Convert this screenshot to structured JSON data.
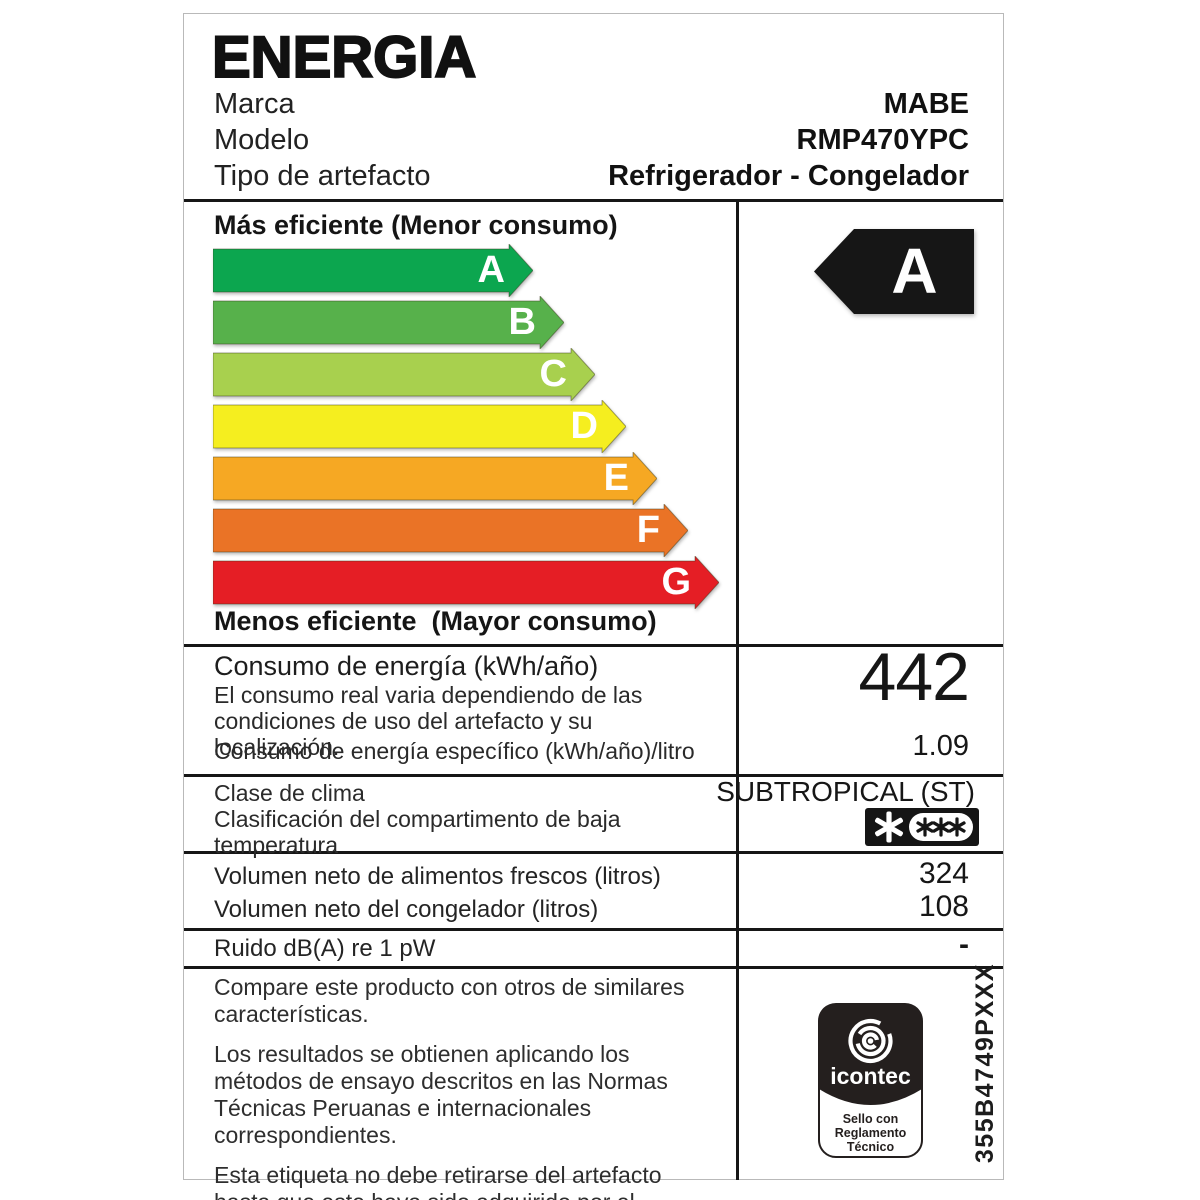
{
  "header": {
    "title": "ENERGIA",
    "fields": [
      {
        "label": "Marca",
        "value": "MABE"
      },
      {
        "label": "Modelo",
        "value": "RMP470YPC"
      },
      {
        "label": "Tipo de artefacto",
        "value": "Refrigerador - Congelador"
      }
    ]
  },
  "scale": {
    "top_caption": "Más eficiente (Menor consumo)",
    "bottom_caption": "Menos eficiente  (Mayor consumo)",
    "grades": [
      {
        "letter": "A",
        "color": "#0ca64f"
      },
      {
        "letter": "B",
        "color": "#57b14b"
      },
      {
        "letter": "C",
        "color": "#a8d04e"
      },
      {
        "letter": "D",
        "color": "#f5ee1f"
      },
      {
        "letter": "E",
        "color": "#f6a823"
      },
      {
        "letter": "F",
        "color": "#ea7326"
      },
      {
        "letter": "G",
        "color": "#e51e25"
      }
    ],
    "rating": {
      "letter": "A",
      "arrow_color": "#161616",
      "icon": "rating-arrow-left"
    }
  },
  "rows": {
    "consumption": {
      "title": "Consumo de energía (kWh/año)",
      "note": "El consumo real varia dependiendo de las condiciones de uso del artefacto y su localización.",
      "specific_label": "Consumo de energía específico (kWh/año)/litro",
      "value": "442",
      "specific_value": "1.09"
    },
    "climate": {
      "label": "Clase de clima",
      "value": "SUBTROPICAL (ST)",
      "low_temp_label": "Clasificación del compartimento de baja temperatura",
      "low_temp_icon": "freezer-four-star-rating"
    },
    "volumes": [
      {
        "label": "Volumen neto de alimentos frescos (litros)",
        "value": "324"
      },
      {
        "label": "Volumen neto del congelador (litros)",
        "value": "108"
      }
    ],
    "noise": {
      "label": "Ruido dB(A) re 1 pW",
      "value": "-"
    }
  },
  "footer": {
    "paragraphs": [
      "Compare este producto con otros de similares características.",
      "Los resultados se obtienen aplicando los métodos de ensayo descritos en las Normas Técnicas Peruanas e internacionales correspondientes.",
      "Esta etiqueta no debe retirarse del artefacto hasta que este haya sido adquirido por el consumidor final."
    ],
    "certification": {
      "icon": "icontec-seal",
      "brand": "icontec",
      "seal_line1": "Sello con",
      "seal_line2": "Reglamento",
      "seal_line3": "Técnico"
    },
    "code": "355B4749PXXX"
  }
}
